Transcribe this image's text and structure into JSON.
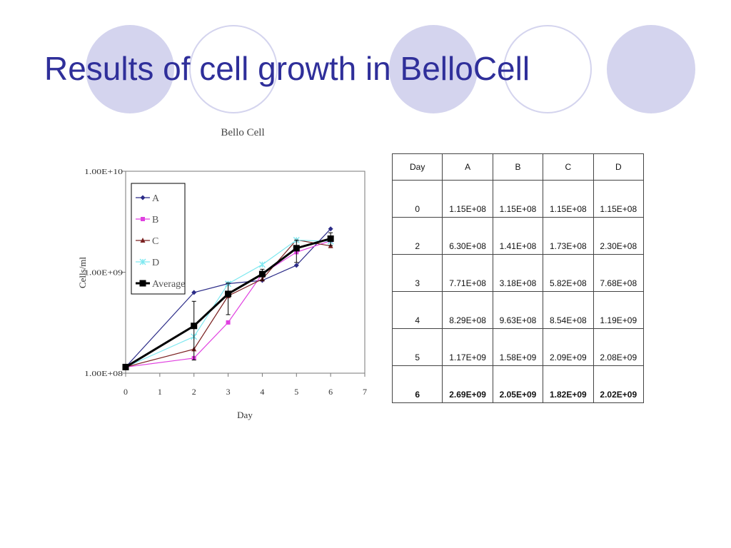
{
  "slide": {
    "title": "Results of cell growth in BelloCell"
  },
  "colors": {
    "title": "#2f2f9a",
    "decor_circle": "#d4d4ee",
    "A": "#2c2c88",
    "B": "#e040e0",
    "C": "#7a2020",
    "D": "#7fe8f0",
    "Average": "#000000"
  },
  "chart_data": {
    "type": "line",
    "title": "Bello Cell",
    "xlabel": "Day",
    "ylabel": "Cells/ml",
    "x_scale": "linear",
    "y_scale": "log",
    "xlim": [
      0,
      7
    ],
    "ylim": [
      100000000,
      10000000000
    ],
    "x_ticks": [
      "0",
      "1",
      "2",
      "3",
      "4",
      "5",
      "6",
      "7"
    ],
    "y_ticks": [
      "1.00E+08",
      "1.00E+09",
      "1.00E+10"
    ],
    "legend_position": "top-left",
    "grid": false,
    "x": [
      0,
      2,
      3,
      4,
      5,
      6
    ],
    "series": [
      {
        "name": "A",
        "marker": "diamond",
        "values": [
          115000000,
          630000000,
          771000000,
          829000000,
          1170000000,
          2690000000
        ]
      },
      {
        "name": "B",
        "marker": "square",
        "values": [
          115000000,
          141000000,
          318000000,
          963000000,
          1580000000,
          2050000000
        ]
      },
      {
        "name": "C",
        "marker": "triangle",
        "values": [
          115000000,
          173000000,
          582000000,
          854000000,
          2090000000,
          1820000000
        ]
      },
      {
        "name": "D",
        "marker": "star",
        "values": [
          115000000,
          230000000,
          768000000,
          1190000000,
          2080000000,
          2020000000
        ]
      },
      {
        "name": "Average",
        "marker": "square-large",
        "values": [
          115000000,
          294000000,
          610000000,
          959000000,
          1730000000,
          2150000000
        ],
        "error_low": [
          115000000,
          135000000,
          380000000,
          830000000,
          1250000000,
          1840000000
        ],
        "error_high": [
          115000000,
          515000000,
          780000000,
          1070000000,
          2080000000,
          2460000000
        ]
      }
    ]
  },
  "table": {
    "headers": [
      "Day",
      "A",
      "B",
      "C",
      "D"
    ],
    "rows": [
      [
        "0",
        "1.15E+08",
        "1.15E+08",
        "1.15E+08",
        "1.15E+08"
      ],
      [
        "2",
        "6.30E+08",
        "1.41E+08",
        "1.73E+08",
        "2.30E+08"
      ],
      [
        "3",
        "7.71E+08",
        "3.18E+08",
        "5.82E+08",
        "7.68E+08"
      ],
      [
        "4",
        "8.29E+08",
        "9.63E+08",
        "8.54E+08",
        "1.19E+09"
      ],
      [
        "5",
        "1.17E+09",
        "1.58E+09",
        "2.09E+09",
        "2.08E+09"
      ],
      [
        "6",
        "2.69E+09",
        "2.05E+09",
        "1.82E+09",
        "2.02E+09"
      ]
    ]
  }
}
